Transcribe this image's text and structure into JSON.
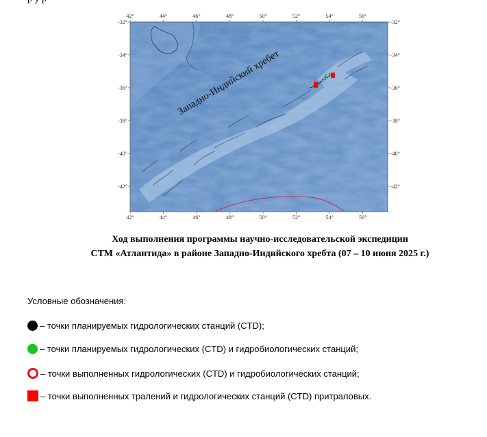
{
  "map": {
    "ridge_label": "Западно-Индийский хребет",
    "lon_ticks": [
      "42°",
      "44°",
      "46°",
      "48°",
      "50°",
      "52°",
      "54°",
      "56°"
    ],
    "lat_ticks": [
      "-32°",
      "-34°",
      "-36°",
      "-38°",
      "-40°",
      "-42°"
    ],
    "colors": {
      "ocean": "#5b87bd",
      "track": "#e02020",
      "station": "#ff0000",
      "arc": "#c0304a"
    }
  },
  "caption": {
    "line1": "Ход выполнения программы научно-исследовательской экспедиции",
    "line2": "СТМ «Атлантида» в районе Западно-Индийского хребта (07 – 10 июня 2025 г.)"
  },
  "legend": {
    "title": "Условные обозначения:",
    "items": [
      {
        "icon": "black-dot",
        "text": "– точки планируемых гидрологических станций (CTD);"
      },
      {
        "icon": "green-dot",
        "text": "– точки планируемых гидрологических (CTD) и гидробиологических станций;"
      },
      {
        "icon": "red-ring",
        "text": "– точки выполненных гидрологических (CTD) и гидробиологических станций;"
      },
      {
        "icon": "red-square",
        "text": "– точки выполненных тралений и гидрологических станций (CTD) притраловых."
      }
    ]
  }
}
